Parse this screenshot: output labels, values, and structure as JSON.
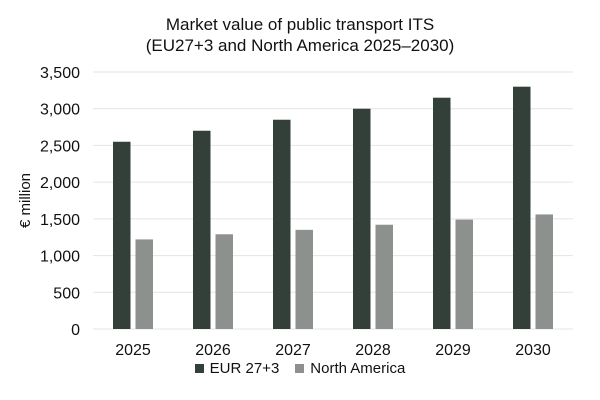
{
  "chart_data": {
    "type": "bar",
    "title_line1": "Market value of public transport ITS",
    "title_line2": "(EU27+3 and North America 2025–2030)",
    "xlabel": "",
    "ylabel": "€ million",
    "ylim": [
      0,
      3500
    ],
    "yticks": [
      0,
      500,
      1000,
      1500,
      2000,
      2500,
      3000,
      3500
    ],
    "ytick_labels": [
      "0",
      "500",
      "1,000",
      "1,500",
      "2,000",
      "2,500",
      "3,000",
      "3,500"
    ],
    "grid": "horizontal",
    "legend_position": "bottom",
    "categories": [
      "2025",
      "2026",
      "2027",
      "2028",
      "2029",
      "2030"
    ],
    "series": [
      {
        "name": "EUR 27+3",
        "color": "#334039",
        "values": [
          2550,
          2700,
          2850,
          3000,
          3150,
          3300
        ]
      },
      {
        "name": "North America",
        "color": "#8c918e",
        "values": [
          1220,
          1290,
          1350,
          1420,
          1490,
          1560
        ]
      }
    ]
  }
}
